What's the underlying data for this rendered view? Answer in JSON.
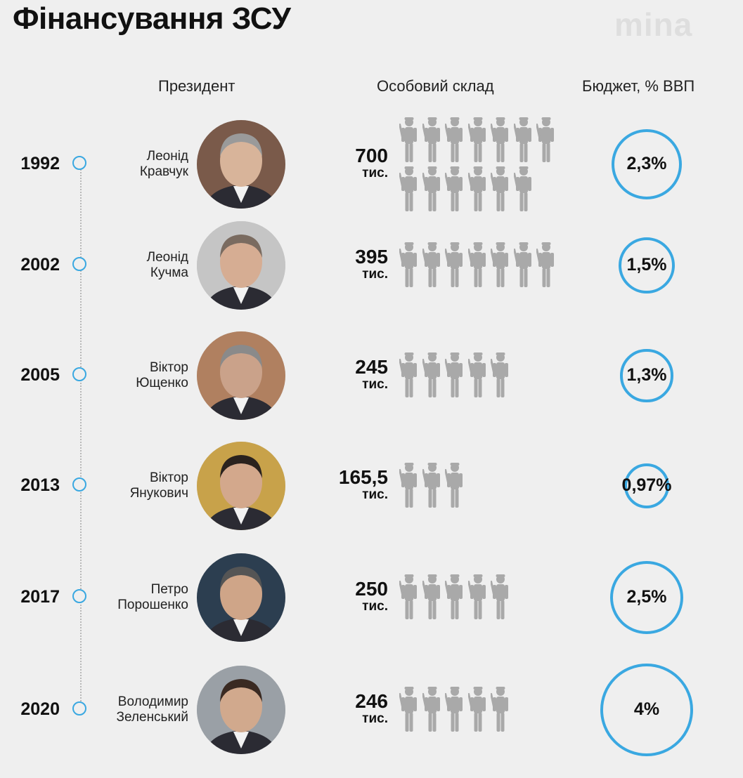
{
  "title": "Фінансування ЗСУ",
  "logo": "mina",
  "headers": {
    "president": "Президент",
    "personnel": "Особовий склад",
    "budget": "Бюджет, % ВВП"
  },
  "colors": {
    "accent": "#3aa8e1",
    "soldier": "#a9a9a9",
    "background": "#efefef"
  },
  "chart_data": {
    "type": "table",
    "title": "Фінансування ЗСУ",
    "columns": [
      "Президент",
      "Особовий склад",
      "Бюджет, % ВВП"
    ],
    "rows": [
      {
        "year": "1992",
        "president_line1": "Леонід",
        "president_line2": "Кравчук",
        "personnel": 700,
        "personnel_label": "700",
        "unit": "тис.",
        "icons": 13,
        "budget": 2.3,
        "budget_label": "2,3%"
      },
      {
        "year": "2002",
        "president_line1": "Леонід",
        "president_line2": "Кучма",
        "personnel": 395,
        "personnel_label": "395",
        "unit": "тис.",
        "icons": 7,
        "budget": 1.5,
        "budget_label": "1,5%"
      },
      {
        "year": "2005",
        "president_line1": "Віктор",
        "president_line2": "Ющенко",
        "personnel": 245,
        "personnel_label": "245",
        "unit": "тис.",
        "icons": 5,
        "budget": 1.3,
        "budget_label": "1,3%"
      },
      {
        "year": "2013",
        "president_line1": "Віктор",
        "president_line2": "Янукович",
        "personnel": 165.5,
        "personnel_label": "165,5",
        "unit": "тис.",
        "icons": 3,
        "budget": 0.97,
        "budget_label": "0,97%"
      },
      {
        "year": "2017",
        "president_line1": "Петро",
        "president_line2": "Порошенко",
        "personnel": 250,
        "personnel_label": "250",
        "unit": "тис.",
        "icons": 5,
        "budget": 2.5,
        "budget_label": "2,5%"
      },
      {
        "year": "2020",
        "president_line1": "Володимир",
        "president_line2": "Зеленський",
        "personnel": 246,
        "personnel_label": "246",
        "unit": "тис.",
        "icons": 5,
        "budget": 4,
        "budget_label": "4%"
      }
    ]
  }
}
